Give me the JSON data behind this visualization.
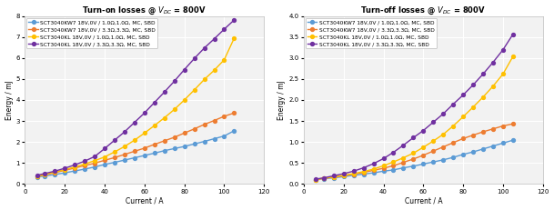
{
  "title_left": "Turn-on losses @ $V_{DC}$ = 800V",
  "title_right": "Turn-off losses @ $V_{DC}$ = 800V",
  "xlabel": "Current / A",
  "ylabel": "Energy / mJ",
  "colors": [
    "#5b9bd5",
    "#ed7d31",
    "#ffc000",
    "#7030a0"
  ],
  "legend_labels": [
    "SCT3040KW7 18V,0V / 1.0Ω,1.0Ω, MC, SBD",
    "SCT3040KW7 18V,0V / 3.3Ω,3.3Ω, MC, SBD",
    "SCT3040KL 18V,0V / 1.0Ω,1.0Ω, MC, SBD",
    "SCT3040KL 18V,0V / 3.3Ω,3.3Ω, MC, SBD"
  ],
  "current_x": [
    6,
    10,
    15,
    20,
    25,
    30,
    35,
    40,
    45,
    50,
    55,
    60,
    65,
    70,
    75,
    80,
    85,
    90,
    95,
    100,
    105
  ],
  "ton_blue": [
    0.32,
    0.37,
    0.44,
    0.52,
    0.61,
    0.7,
    0.8,
    0.92,
    1.02,
    1.13,
    1.24,
    1.35,
    1.46,
    1.58,
    1.68,
    1.78,
    1.9,
    2.02,
    2.15,
    2.28,
    2.53
  ],
  "ton_orange": [
    0.35,
    0.42,
    0.53,
    0.64,
    0.75,
    0.87,
    0.98,
    1.12,
    1.25,
    1.4,
    1.55,
    1.7,
    1.88,
    2.05,
    2.22,
    2.42,
    2.62,
    2.83,
    3.02,
    3.22,
    3.38
  ],
  "ton_yellow": [
    0.36,
    0.44,
    0.56,
    0.67,
    0.8,
    0.94,
    1.1,
    1.28,
    1.52,
    1.78,
    2.08,
    2.42,
    2.78,
    3.15,
    3.55,
    4.0,
    4.48,
    4.98,
    5.42,
    5.92,
    6.95
  ],
  "ton_purple": [
    0.4,
    0.49,
    0.6,
    0.74,
    0.9,
    1.08,
    1.3,
    1.68,
    2.08,
    2.48,
    2.93,
    3.38,
    3.88,
    4.38,
    4.9,
    5.45,
    5.98,
    6.48,
    6.92,
    7.38,
    7.82
  ],
  "toff_blue": [
    0.1,
    0.12,
    0.14,
    0.17,
    0.2,
    0.23,
    0.26,
    0.3,
    0.33,
    0.38,
    0.42,
    0.47,
    0.52,
    0.57,
    0.63,
    0.7,
    0.76,
    0.83,
    0.9,
    0.97,
    1.04
  ],
  "toff_orange": [
    0.1,
    0.13,
    0.16,
    0.19,
    0.23,
    0.27,
    0.32,
    0.37,
    0.43,
    0.51,
    0.59,
    0.68,
    0.78,
    0.88,
    0.98,
    1.08,
    1.16,
    1.24,
    1.31,
    1.38,
    1.43
  ],
  "toff_yellow": [
    0.1,
    0.13,
    0.16,
    0.2,
    0.24,
    0.29,
    0.35,
    0.43,
    0.52,
    0.62,
    0.73,
    0.87,
    1.02,
    1.18,
    1.38,
    1.6,
    1.83,
    2.07,
    2.33,
    2.62,
    3.04
  ],
  "toff_purple": [
    0.11,
    0.14,
    0.19,
    0.24,
    0.3,
    0.38,
    0.48,
    0.6,
    0.75,
    0.92,
    1.1,
    1.27,
    1.47,
    1.67,
    1.9,
    2.12,
    2.36,
    2.62,
    2.9,
    3.2,
    3.57
  ],
  "ton_ylim": [
    0,
    8
  ],
  "ton_yticks": [
    0,
    1,
    2,
    3,
    4,
    5,
    6,
    7,
    8
  ],
  "toff_ylim": [
    0,
    4
  ],
  "toff_yticks": [
    0,
    0.5,
    1.0,
    1.5,
    2.0,
    2.5,
    3.0,
    3.5,
    4.0
  ],
  "xlim": [
    0,
    120
  ],
  "xticks": [
    0,
    20,
    40,
    60,
    80,
    100,
    120
  ],
  "bg_color": "#ffffff",
  "plot_bg_color": "#f2f2f2",
  "grid_color": "#ffffff",
  "marker": "o",
  "markersize": 2.8,
  "linewidth": 1.0
}
